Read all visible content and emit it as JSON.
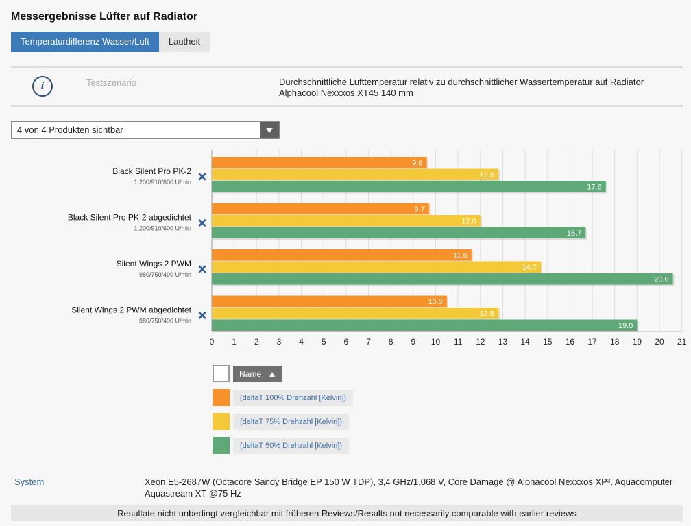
{
  "header": {
    "title": "Messergebnisse Lüfter auf Radiator"
  },
  "tabs": [
    {
      "label": "Temperaturdifferenz Wasser/Luft",
      "active": true
    },
    {
      "label": "Lautheit",
      "active": false
    }
  ],
  "scenario": {
    "icon": "info-icon",
    "label": "Testszenario",
    "text": "Durchschnittliche Lufttemperatur relativ zu durchschnittlicher Wassertemperatur auf Radiator Alphacool Nexxxos XT45 140 mm"
  },
  "filter": {
    "value": "4 von 4 Produkten sichtbar",
    "icon": "chevron-down-icon"
  },
  "chart_data": {
    "type": "bar",
    "orientation": "horizontal",
    "title": "",
    "xlabel": "",
    "ylabel": "",
    "xlim": [
      0,
      21
    ],
    "x_ticks": [
      0,
      1,
      2,
      3,
      4,
      5,
      6,
      7,
      8,
      9,
      10,
      11,
      12,
      13,
      14,
      15,
      16,
      17,
      18,
      19,
      20,
      21
    ],
    "grid": true,
    "legend_position": "bottom",
    "categories": [
      {
        "name": "Black Silent Pro PK-2",
        "sub": "1.200/910/600 U/min"
      },
      {
        "name": "Black Silent Pro PK-2 abgedichtet",
        "sub": "1.200/910/600 U/min"
      },
      {
        "name": "Silent Wings 2 PWM",
        "sub": "980/750/490 U/min"
      },
      {
        "name": "Silent Wings 2 PWM abgedichtet",
        "sub": "980/750/490 U/min"
      }
    ],
    "series": [
      {
        "name": "(deltaT 100% Drehzahl [Kelvin])",
        "color": "#f7922b",
        "values": [
          9.6,
          9.7,
          11.6,
          10.5
        ]
      },
      {
        "name": "(deltaT 75% Drehzahl [Kelvin])",
        "color": "#f3c93a",
        "values": [
          12.8,
          12.0,
          14.7,
          12.8
        ]
      },
      {
        "name": "(deltaT 50% Drehzahl [Kelvin])",
        "color": "#5fa878",
        "values": [
          17.6,
          16.7,
          20.6,
          19.0
        ]
      }
    ],
    "remove_icon": "close-icon"
  },
  "legend": {
    "sort_label": "Name",
    "sort_icon": "sort-asc-icon"
  },
  "system": {
    "label": "System",
    "text": "Xeon E5-2687W (Octacore Sandy Bridge EP 150 W TDP), 3,4 GHz/1,068 V, Core Damage @ Alphacool Nexxxos XP³, Aquacomputer Aquastream XT @75 Hz"
  },
  "footer": {
    "note": "Resultate nicht unbedingt vergleichbar mit früheren Reviews/Results not necessarily comparable with earlier reviews"
  }
}
